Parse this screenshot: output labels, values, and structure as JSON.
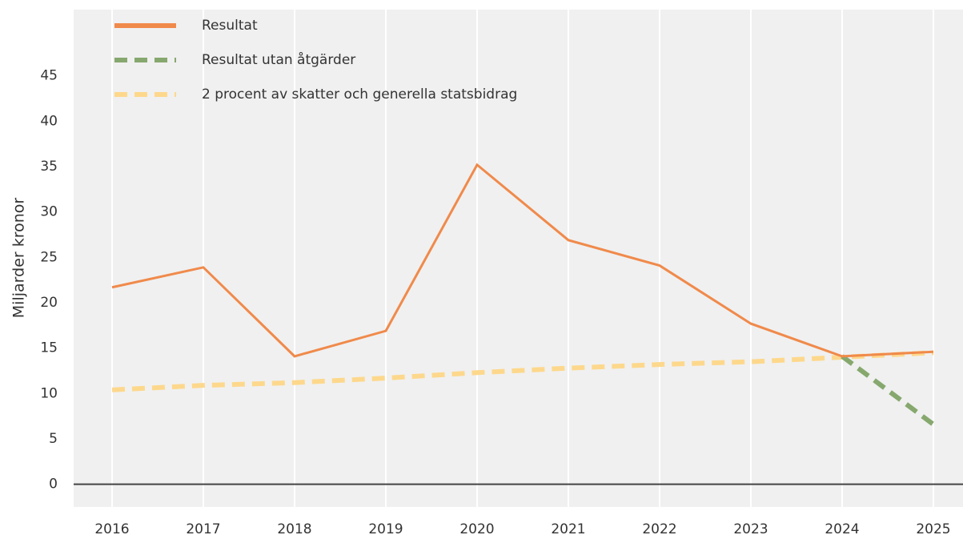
{
  "chart_data": {
    "type": "line",
    "y_label": "Miljarder kronor",
    "categories": [
      "2016",
      "2017",
      "2018",
      "2019",
      "2020",
      "2021",
      "2022",
      "2023",
      "2024",
      "2025"
    ],
    "series": [
      {
        "name": "Resultat",
        "color": "#f08a4b",
        "dash": "solid",
        "values": [
          21.7,
          23.9,
          14.1,
          16.9,
          35.2,
          26.9,
          24.1,
          17.7,
          14.1,
          14.6
        ]
      },
      {
        "name": "Resultat utan åtgärder",
        "color": "#86a86e",
        "dash": "dashed",
        "values": [
          null,
          null,
          null,
          null,
          null,
          null,
          null,
          null,
          14.1,
          6.6
        ]
      },
      {
        "name": "2 procent av skatter och generella statsbidrag",
        "color": "#fdd88c",
        "dash": "dashed",
        "values": [
          10.4,
          10.9,
          11.2,
          11.7,
          12.3,
          12.8,
          13.2,
          13.5,
          14.0,
          14.5
        ]
      }
    ],
    "ylim": [
      -2.5,
      52.3
    ],
    "yticks": [
      0,
      5,
      10,
      15,
      20,
      25,
      30,
      35,
      40,
      45
    ],
    "legend": "top-left"
  }
}
